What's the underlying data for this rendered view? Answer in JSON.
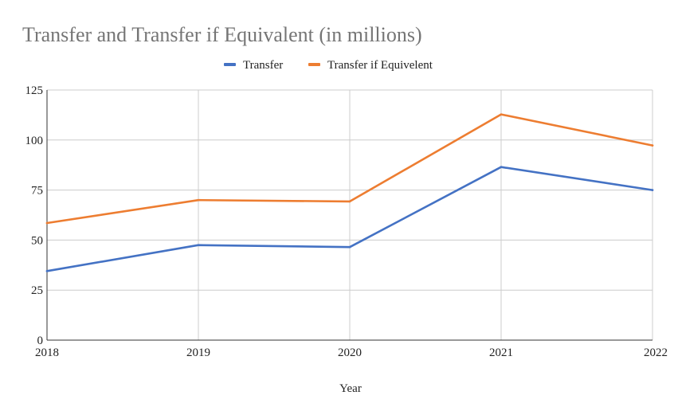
{
  "chart_data": {
    "type": "line",
    "title": "Transfer and Transfer if Equivalent (in millions)",
    "xlabel": "Year",
    "ylabel": "",
    "categories": [
      "2018",
      "2019",
      "2020",
      "2021",
      "2022"
    ],
    "ylim": [
      0,
      125
    ],
    "yticks": [
      0,
      25,
      50,
      75,
      100,
      125
    ],
    "grid": true,
    "legend_position": "top",
    "series": [
      {
        "name": "Transfer",
        "color": "#4472c4",
        "values": [
          34.5,
          47.5,
          46.5,
          86.5,
          75
        ]
      },
      {
        "name": "Transfer if Equivelent",
        "color": "#ed7d31",
        "values": [
          58.5,
          70,
          69.3,
          112.8,
          97.3
        ]
      }
    ]
  }
}
